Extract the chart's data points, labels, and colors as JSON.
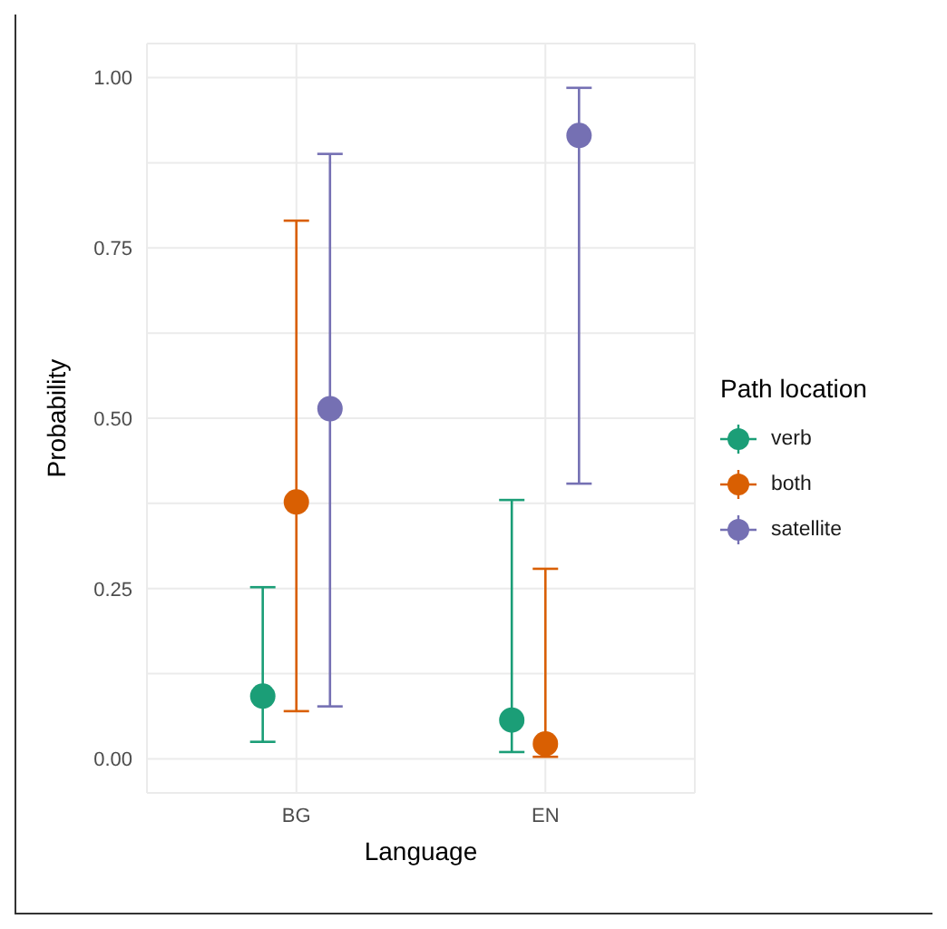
{
  "chart_data": {
    "type": "scatter",
    "xlabel": "Language",
    "ylabel": "Probability",
    "legend_title": "Path location",
    "categories": [
      "BG",
      "EN"
    ],
    "series": [
      {
        "name": "verb",
        "color": "#1b9e77",
        "values": [
          0.092,
          0.057
        ],
        "errors": [
          [
            0.025,
            0.252
          ],
          [
            0.01,
            0.38
          ]
        ]
      },
      {
        "name": "both",
        "color": "#d95f02",
        "values": [
          0.377,
          0.022
        ],
        "errors": [
          [
            0.07,
            0.79
          ],
          [
            0.003,
            0.279
          ]
        ]
      },
      {
        "name": "satellite",
        "color": "#7570b3",
        "values": [
          0.514,
          0.915
        ],
        "errors": [
          [
            0.077,
            0.888
          ],
          [
            0.404,
            0.985
          ]
        ]
      }
    ],
    "ylim": [
      -0.05,
      1.05
    ],
    "yticks": [
      {
        "value": 0,
        "label": "0.00"
      },
      {
        "value": 0.125,
        "label": null
      },
      0.25,
      {
        "value": 0.375,
        "label": null
      },
      {
        "value": 0.5,
        "label": "0.50"
      },
      {
        "value": 0.625,
        "label": null
      },
      0.75,
      {
        "value": 0.875,
        "label": null
      },
      {
        "value": 1,
        "label": "1.00"
      }
    ],
    "grid": true,
    "legend": "right",
    "marker": "circle"
  }
}
